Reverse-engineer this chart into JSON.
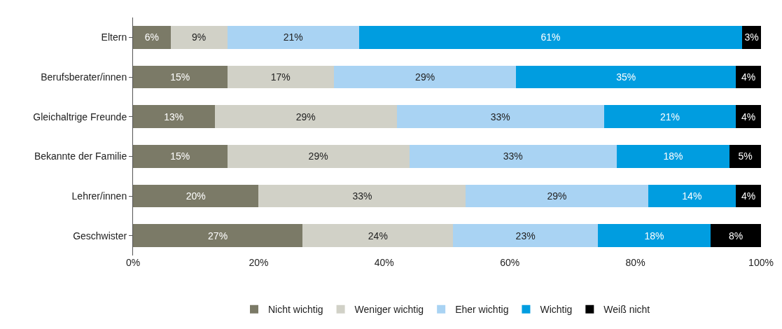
{
  "chart_data": {
    "type": "bar",
    "orientation": "horizontal",
    "stacked": true,
    "categories": [
      "Eltern",
      "Berufsberater/innen",
      "Gleichaltrige Freunde",
      "Bekannte der Familie",
      "Lehrer/innen",
      "Geschwister"
    ],
    "series": [
      {
        "name": "Nicht wichtig",
        "color": "#7b7a67",
        "values": [
          6,
          15,
          13,
          15,
          20,
          27
        ],
        "value_labels": [
          "6%",
          "15%",
          "13%",
          "15%",
          "20%",
          "27%"
        ]
      },
      {
        "name": "Weniger wichtig",
        "color": "#d1d1c7",
        "values": [
          9,
          17,
          29,
          29,
          33,
          24
        ],
        "value_labels": [
          "9%",
          "17%",
          "29%",
          "29%",
          "33%",
          "24%"
        ]
      },
      {
        "name": "Eher wichtig",
        "color": "#a9d3f3",
        "values": [
          21,
          29,
          33,
          33,
          29,
          23
        ],
        "value_labels": [
          "21%",
          "29%",
          "33%",
          "33%",
          "29%",
          "23%"
        ]
      },
      {
        "name": "Wichtig",
        "color": "#009de0",
        "values": [
          61,
          35,
          21,
          18,
          14,
          18
        ],
        "value_labels": [
          "61%",
          "35%",
          "21%",
          "18%",
          "14%",
          "18%"
        ]
      },
      {
        "name": "Weiß nicht",
        "color": "#000000",
        "values": [
          3,
          4,
          4,
          5,
          4,
          8
        ],
        "value_labels": [
          "3%",
          "4%",
          "4%",
          "5%",
          "4%",
          "8%"
        ]
      }
    ],
    "xlim": [
      0,
      100
    ],
    "xticks": [
      {
        "value": 0,
        "label": "0%"
      },
      {
        "value": 20,
        "label": "20%"
      },
      {
        "value": 40,
        "label": "40%"
      },
      {
        "value": 60,
        "label": "60%"
      },
      {
        "value": 80,
        "label": "80%"
      },
      {
        "value": 100,
        "label": "100%"
      }
    ],
    "grid": false,
    "legend": "bottom"
  }
}
